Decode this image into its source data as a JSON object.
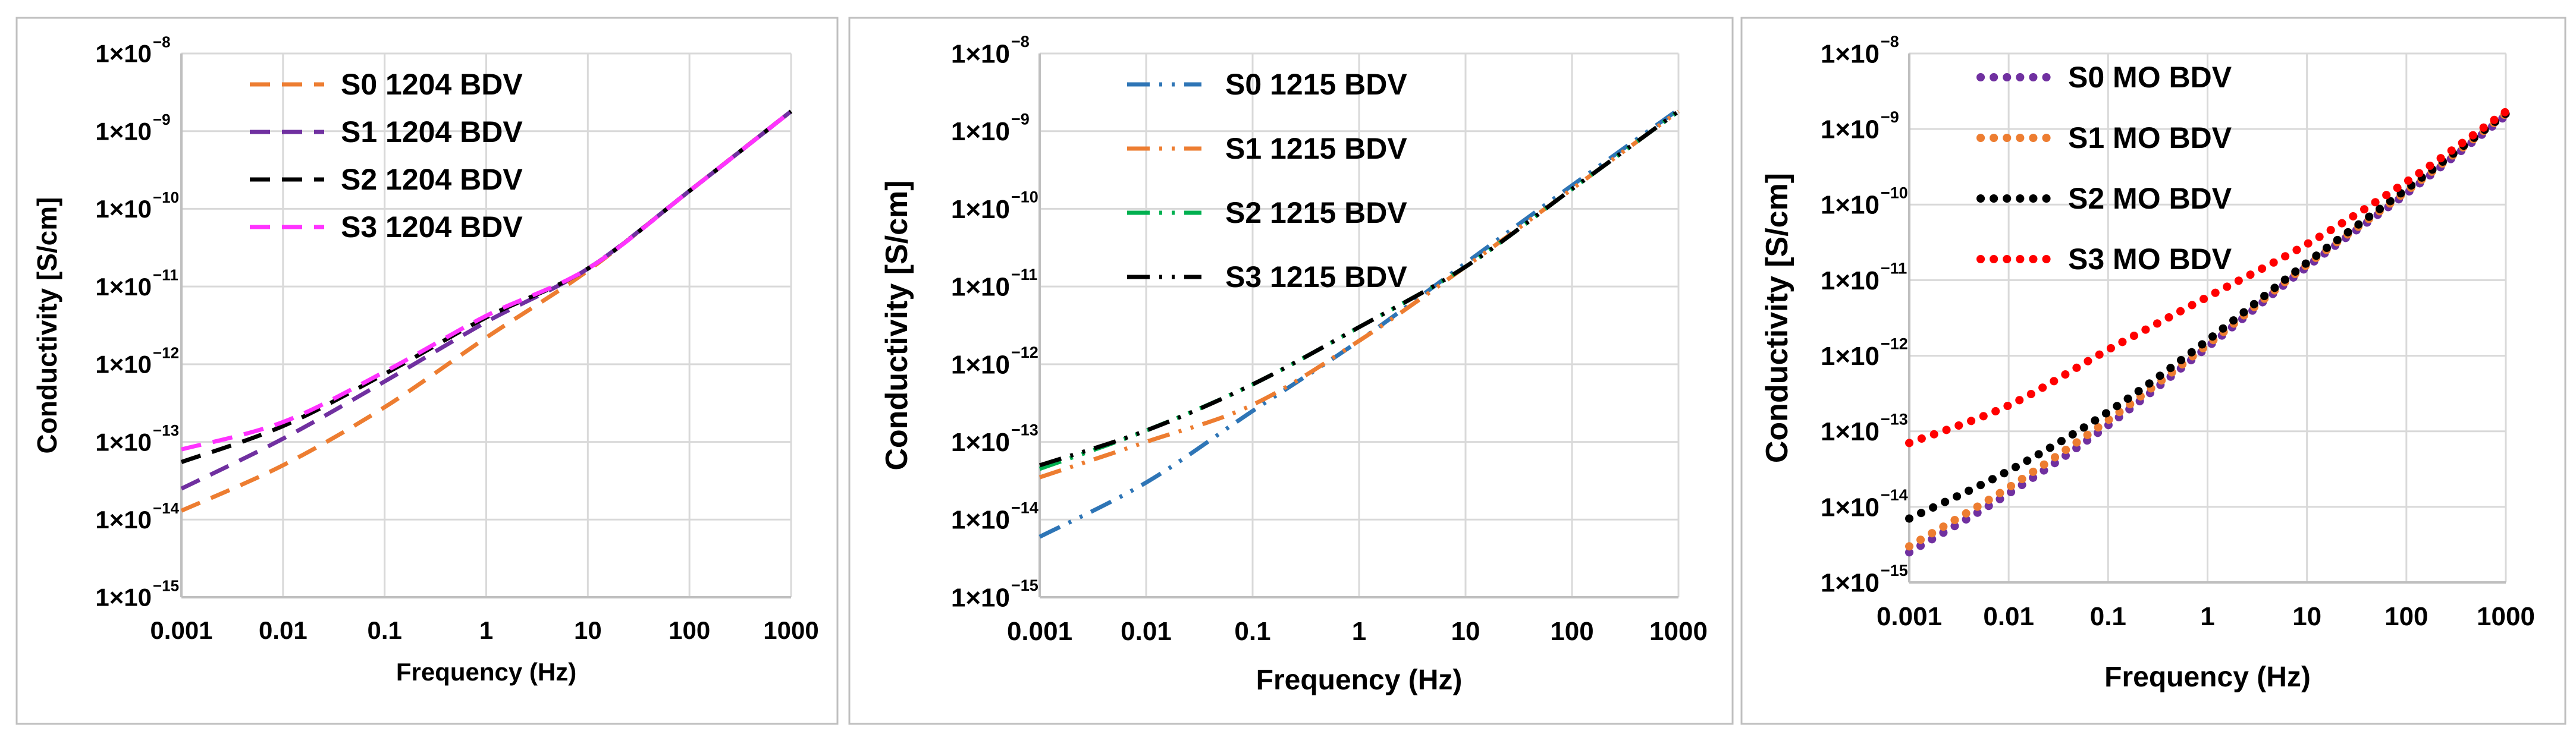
{
  "chart_data": [
    {
      "type": "line",
      "xscale": "log",
      "yscale": "log",
      "xlabel": "Frequency (Hz)",
      "ylabel": "Conductivity   [S/cm]",
      "xlim": [
        0.001,
        1000
      ],
      "ylim": [
        1e-15,
        1e-08
      ],
      "xtick_labels": [
        "0.001",
        "0.01",
        "0.1",
        "1",
        "10",
        "100",
        "1000"
      ],
      "ytick_labels": [
        "1×10",
        "1×10",
        "1×10",
        "1×10",
        "1×10",
        "1×10",
        "1×10",
        "1×10"
      ],
      "ytick_exponents": [
        "−15",
        "−14",
        "−13",
        "−12",
        "−11",
        "−10",
        "−9",
        "−8"
      ],
      "x": [
        0.001,
        0.01,
        0.1,
        1,
        10,
        100,
        1000
      ],
      "series": [
        {
          "name": "S0 1204 BDV",
          "color": "#ED7D31",
          "dash": "dash",
          "values": [
            1.3e-14,
            5e-14,
            2.8e-13,
            2.2e-12,
            1.6e-11,
            1.7e-10,
            1.8e-09
          ]
        },
        {
          "name": "S1 1204 BDV",
          "color": "#7030A0",
          "dash": "dash",
          "values": [
            2.5e-14,
            1.1e-13,
            6e-13,
            3.5e-12,
            1.7e-11,
            1.7e-10,
            1.8e-09
          ]
        },
        {
          "name": "S2 1204 BDV",
          "color": "#000000",
          "dash": "dash",
          "values": [
            5.5e-14,
            1.6e-13,
            7.5e-13,
            4e-12,
            1.7e-11,
            1.7e-10,
            1.8e-09
          ]
        },
        {
          "name": "S3 1204 BDV",
          "color": "#FF33FF",
          "dash": "dash",
          "values": [
            8e-14,
            1.8e-13,
            8e-13,
            4.2e-12,
            1.7e-11,
            1.7e-10,
            1.8e-09
          ]
        }
      ]
    },
    {
      "type": "line",
      "xscale": "log",
      "yscale": "log",
      "xlabel": "Frequency (Hz)",
      "ylabel": "Conductivity   [S/cm]",
      "xlim": [
        0.001,
        1000
      ],
      "ylim": [
        1e-15,
        1e-08
      ],
      "xtick_labels": [
        "0.001",
        "0.01",
        "0.1",
        "1",
        "10",
        "100",
        "1000"
      ],
      "ytick_labels": [
        "1×10",
        "1×10",
        "1×10",
        "1×10",
        "1×10",
        "1×10",
        "1×10",
        "1×10"
      ],
      "ytick_exponents": [
        "−15",
        "−14",
        "−13",
        "−12",
        "−11",
        "−10",
        "−9",
        "−8"
      ],
      "x": [
        0.001,
        0.01,
        0.1,
        1,
        10,
        100,
        1000
      ],
      "series": [
        {
          "name": "S0 1215 BDV",
          "color": "#2E75B6",
          "dash": "dashdot",
          "values": [
            6e-15,
            3e-14,
            2.5e-13,
            2e-12,
            2e-11,
            2e-10,
            1.9e-09
          ]
        },
        {
          "name": "S1 1215 BDV",
          "color": "#ED7D31",
          "dash": "dashdot",
          "values": [
            3.5e-14,
            1e-13,
            3e-13,
            2e-12,
            1.8e-11,
            1.8e-10,
            1.8e-09
          ]
        },
        {
          "name": "S2 1215 BDV",
          "color": "#00B050",
          "dash": "dashdot",
          "values": [
            4.5e-14,
            1.4e-13,
            5.5e-13,
            3e-12,
            1.8e-11,
            1.8e-10,
            1.8e-09
          ]
        },
        {
          "name": "S3 1215 BDV",
          "color": "#000000",
          "dash": "dashdot",
          "values": [
            5e-14,
            1.4e-13,
            5.5e-13,
            3e-12,
            1.8e-11,
            1.8e-10,
            1.8e-09
          ]
        }
      ]
    },
    {
      "type": "line",
      "xscale": "log",
      "yscale": "log",
      "xlabel": "Frequency (Hz)",
      "ylabel": "Conductivity   [S/cm]",
      "xlim": [
        0.001,
        1000
      ],
      "ylim": [
        1e-15,
        1e-08
      ],
      "xtick_labels": [
        "0.001",
        "0.01",
        "0.1",
        "1",
        "10",
        "100",
        "1000"
      ],
      "ytick_labels": [
        "1×10",
        "1×10",
        "1×10",
        "1×10",
        "1×10",
        "1×10",
        "1×10",
        "1×10"
      ],
      "ytick_exponents": [
        "−15",
        "−14",
        "−13",
        "−12",
        "−11",
        "−10",
        "−9",
        "−8"
      ],
      "x": [
        0.001,
        0.01,
        0.1,
        1,
        10,
        100,
        1000
      ],
      "series": [
        {
          "name": "S0 MO BDV",
          "color": "#7030A0",
          "dash": "dot",
          "values": [
            2.5e-15,
            1.5e-14,
            1.2e-13,
            1.3e-12,
            1.5e-11,
            1.4e-10,
            1.5e-09
          ]
        },
        {
          "name": "S1 MO BDV",
          "color": "#ED7D31",
          "dash": "dot",
          "values": [
            3e-15,
            1.8e-14,
            1.4e-13,
            1.4e-12,
            1.6e-11,
            1.5e-10,
            1.6e-09
          ]
        },
        {
          "name": "S2 MO BDV",
          "color": "#000000",
          "dash": "dot",
          "values": [
            7e-15,
            3e-14,
            1.8e-13,
            1.6e-12,
            1.7e-11,
            1.6e-10,
            1.6e-09
          ]
        },
        {
          "name": "S3 MO BDV",
          "color": "#FF0000",
          "dash": "dot",
          "values": [
            7e-14,
            2.2e-13,
            1.2e-12,
            6e-12,
            3e-11,
            2e-10,
            1.7e-09
          ]
        }
      ]
    }
  ]
}
